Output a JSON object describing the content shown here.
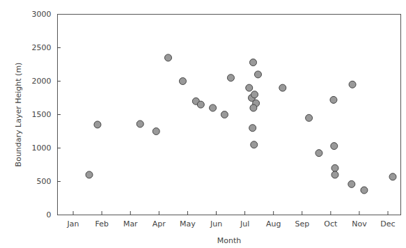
{
  "chart_data": {
    "type": "scatter",
    "x_label": "Month",
    "y_label": "Boundary Layer Height (m)",
    "x": [
      1.56,
      1.85,
      3.34,
      3.9,
      4.32,
      4.83,
      5.29,
      5.46,
      5.88,
      6.29,
      6.51,
      7.15,
      7.29,
      7.46,
      7.24,
      7.34,
      7.39,
      7.3,
      7.27,
      7.32,
      8.32,
      9.24,
      9.59,
      10.1,
      10.12,
      10.15,
      10.15,
      10.76,
      10.73,
      11.17,
      12.17
    ],
    "values": [
      600,
      1350,
      1360,
      1250,
      2350,
      2000,
      1700,
      1650,
      1600,
      1500,
      2050,
      1900,
      2280,
      2100,
      1750,
      1800,
      1670,
      1600,
      1300,
      1050,
      1900,
      1450,
      925,
      1720,
      1030,
      700,
      600,
      1950,
      460,
      370,
      570
    ],
    "color": "#999999",
    "marker": "circle",
    "xlim": [
      0.45,
      12.45
    ],
    "xticks": [
      {
        "value": 1,
        "label": "Jan"
      },
      {
        "value": 2,
        "label": "Feb"
      },
      {
        "value": 3,
        "label": "Mar"
      },
      {
        "value": 4,
        "label": "Apr"
      },
      {
        "value": 5,
        "label": "May"
      },
      {
        "value": 6,
        "label": "Jun"
      },
      {
        "value": 7,
        "label": "Jul"
      },
      {
        "value": 8,
        "label": "Aug"
      },
      {
        "value": 9,
        "label": "Sep"
      },
      {
        "value": 10,
        "label": "Oct"
      },
      {
        "value": 11,
        "label": "Nov"
      },
      {
        "value": 12,
        "label": "Dec"
      }
    ],
    "ylim": [
      0,
      3000
    ],
    "yticks": [
      0,
      500,
      1000,
      1500,
      2000,
      2500,
      3000
    ],
    "grid": false
  }
}
